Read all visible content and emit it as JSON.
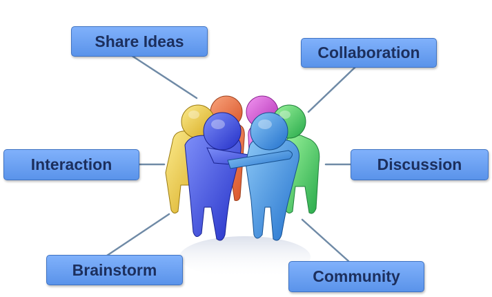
{
  "labels": {
    "share_ideas": "Share Ideas",
    "collaboration": "Collaboration",
    "interaction": "Interaction",
    "discussion": "Discussion",
    "brainstorm": "Brainstorm",
    "community": "Community"
  },
  "colors": {
    "label_fill_top": "#80b1fb",
    "label_fill_bottom": "#5a93ea",
    "label_border": "#3e72c2",
    "label_text": "#1c2f5d",
    "connector": "#6f8aa6",
    "figure_yellow": "#f0cf3c",
    "figure_orange": "#f0784a",
    "figure_magenta": "#d84fd8",
    "figure_green": "#4fcf62",
    "figure_blue": "#3b54e4",
    "figure_cyan": "#3f95df"
  }
}
